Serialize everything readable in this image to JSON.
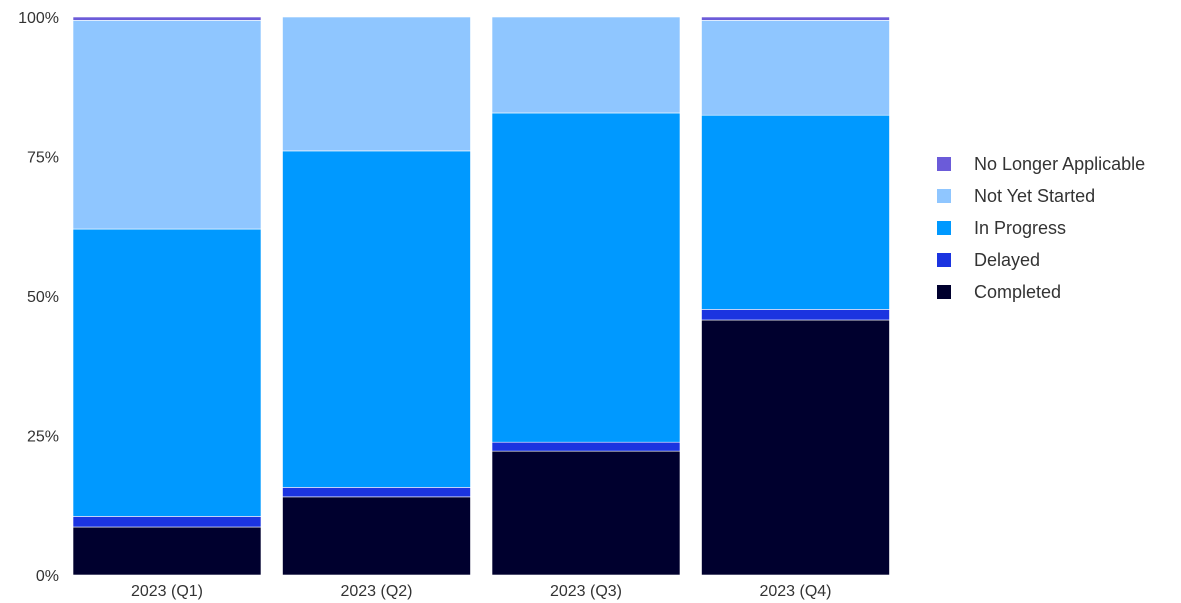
{
  "chart_data": {
    "type": "bar",
    "stacked": true,
    "normalized": true,
    "categories": [
      "2023 (Q1)",
      "2023 (Q2)",
      "2023 (Q3)",
      "2023 (Q4)"
    ],
    "ylim": [
      0,
      100
    ],
    "yticks": [
      0,
      25,
      50,
      75,
      100
    ],
    "ytick_labels": [
      "0%",
      "25%",
      "50%",
      "75%",
      "100%"
    ],
    "grid": false,
    "legend_position": "right",
    "series": [
      {
        "name": "Completed",
        "color": "#00002e",
        "values": [
          8.6,
          14.0,
          22.2,
          45.7
        ]
      },
      {
        "name": "Delayed",
        "color": "#1b34e0",
        "values": [
          1.9,
          1.7,
          1.6,
          1.9
        ]
      },
      {
        "name": "In Progress",
        "color": "#0099ff",
        "values": [
          51.5,
          60.3,
          59.0,
          34.8
        ]
      },
      {
        "name": "Not Yet Started",
        "color": "#8fc6ff",
        "values": [
          37.4,
          24.0,
          17.2,
          17.0
        ]
      },
      {
        "name": "No Longer Applicable",
        "color": "#6b5bd9",
        "values": [
          0.6,
          0.0,
          0.0,
          0.6
        ]
      }
    ]
  }
}
